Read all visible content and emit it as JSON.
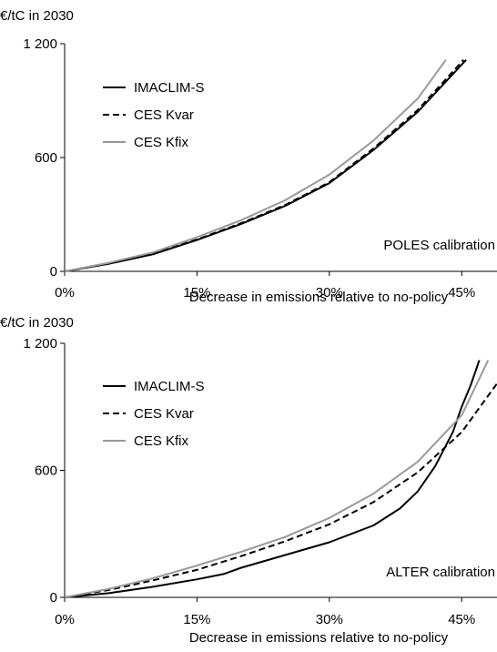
{
  "chart_data": [
    {
      "type": "line",
      "ylabel": "€/tC in 2030",
      "xlabel": "Decrease in emissions relative to no-policy",
      "annotation": "POLES calibration",
      "xlim": [
        0,
        0.49
      ],
      "ylim": [
        0,
        1200
      ],
      "xticks": [
        0,
        0.15,
        0.3,
        0.45
      ],
      "xtick_labels": [
        "0%",
        "15%",
        "30%",
        "45%"
      ],
      "yticks": [
        0,
        600,
        1200
      ],
      "ytick_labels": [
        "0",
        "600",
        "1 200"
      ],
      "legend_position": "top-left",
      "series": [
        {
          "name": "IMACLIM-S",
          "color": "#000000",
          "dash": "solid",
          "x": [
            0,
            0.05,
            0.1,
            0.15,
            0.2,
            0.25,
            0.3,
            0.35,
            0.4,
            0.455
          ],
          "y": [
            0,
            40,
            90,
            165,
            250,
            345,
            465,
            640,
            840,
            1115
          ]
        },
        {
          "name": "CES Kvar",
          "color": "#000000",
          "dash": "dashed",
          "x": [
            0,
            0.05,
            0.1,
            0.15,
            0.2,
            0.25,
            0.3,
            0.35,
            0.4,
            0.452
          ],
          "y": [
            0,
            40,
            92,
            168,
            254,
            350,
            470,
            648,
            850,
            1115
          ]
        },
        {
          "name": "CES Kfix",
          "color": "#999999",
          "dash": "solid",
          "x": [
            0,
            0.05,
            0.1,
            0.15,
            0.2,
            0.25,
            0.3,
            0.35,
            0.4,
            0.432
          ],
          "y": [
            0,
            45,
            100,
            180,
            270,
            375,
            510,
            690,
            910,
            1115
          ]
        }
      ]
    },
    {
      "type": "line",
      "ylabel": "€/tC in 2030",
      "xlabel": "Decrease in emissions relative to no-policy",
      "annotation": "ALTER calibration",
      "xlim": [
        0,
        0.49
      ],
      "ylim": [
        0,
        1200
      ],
      "xticks": [
        0,
        0.15,
        0.3,
        0.45
      ],
      "xtick_labels": [
        "0%",
        "15%",
        "30%",
        "45%"
      ],
      "yticks": [
        0,
        600,
        1200
      ],
      "ytick_labels": [
        "0",
        "600",
        "1 200"
      ],
      "legend_position": "top-left",
      "series": [
        {
          "name": "IMACLIM-S",
          "color": "#000000",
          "dash": "solid",
          "x": [
            0,
            0.05,
            0.1,
            0.15,
            0.18,
            0.2,
            0.25,
            0.3,
            0.35,
            0.38,
            0.4,
            0.42,
            0.44,
            0.45,
            0.46,
            0.47
          ],
          "y": [
            0,
            20,
            50,
            85,
            110,
            140,
            200,
            260,
            340,
            420,
            500,
            620,
            780,
            900,
            1000,
            1120
          ]
        },
        {
          "name": "CES Kvar",
          "color": "#000000",
          "dash": "dashed",
          "x": [
            0,
            0.05,
            0.1,
            0.15,
            0.2,
            0.25,
            0.3,
            0.35,
            0.4,
            0.45,
            0.49
          ],
          "y": [
            0,
            35,
            80,
            130,
            195,
            265,
            345,
            450,
            590,
            780,
            1010
          ]
        },
        {
          "name": "CES Kfix",
          "color": "#999999",
          "dash": "solid",
          "x": [
            0,
            0.05,
            0.1,
            0.15,
            0.2,
            0.25,
            0.3,
            0.35,
            0.4,
            0.45,
            0.48
          ],
          "y": [
            0,
            40,
            90,
            150,
            215,
            285,
            375,
            490,
            640,
            860,
            1120
          ]
        }
      ]
    }
  ]
}
